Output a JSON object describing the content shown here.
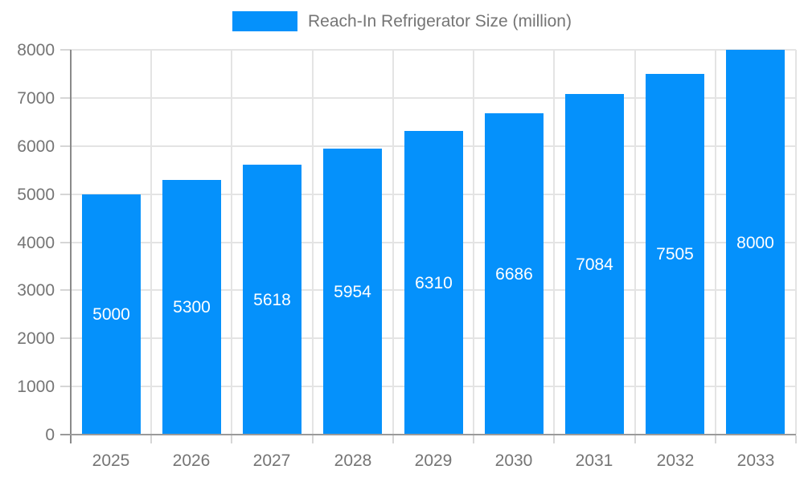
{
  "legend": {
    "label": "Reach-In Refrigerator Size (million)"
  },
  "chart_data": {
    "type": "bar",
    "title": "Reach-In Refrigerator Size (million)",
    "categories": [
      "2025",
      "2026",
      "2027",
      "2028",
      "2029",
      "2030",
      "2031",
      "2032",
      "2033"
    ],
    "values": [
      5000,
      5300,
      5618,
      5954,
      6310,
      6686,
      7084,
      7505,
      8000
    ],
    "xlabel": "",
    "ylabel": "",
    "ylim": [
      0,
      8000
    ],
    "ytick_step": 1000,
    "ytick_labels": [
      "0",
      "1000",
      "2000",
      "3000",
      "4000",
      "5000",
      "6000",
      "7000",
      "8000"
    ],
    "grid": true,
    "legend_position": "top-center",
    "bar_labels_inside": true,
    "colors": {
      "bar": "#0591FB",
      "bar_label_text": "#ffffff",
      "axis_text": "#757575",
      "gridline": "#e4e4e4",
      "axis_line": "#8a8a8a",
      "background": "#ffffff"
    }
  }
}
